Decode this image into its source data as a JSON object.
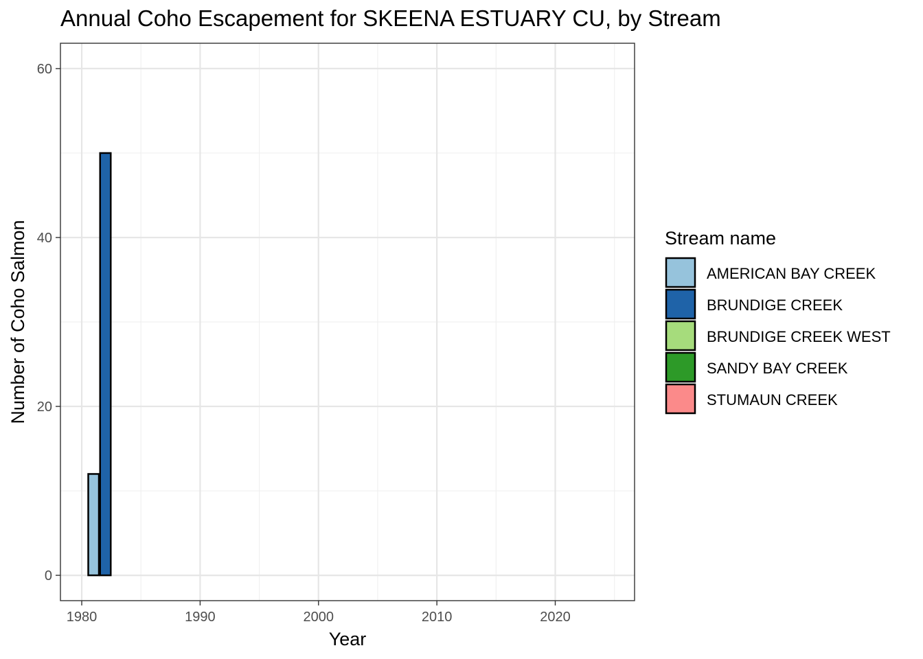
{
  "chart_data": {
    "type": "bar",
    "title": "Annual Coho Escapement for SKEENA ESTUARY CU, by Stream",
    "xlabel": "Year",
    "ylabel": "Number of Coho Salmon",
    "xlim": [
      1978.2,
      1980.1,
      2026.7
    ],
    "x_ticks": [
      1980,
      1990,
      2000,
      2010,
      2020
    ],
    "ylim": [
      -3,
      63
    ],
    "y_ticks": [
      0,
      20,
      40,
      60
    ],
    "grid": true,
    "legend": {
      "title": "Stream name",
      "position": "right"
    },
    "series": [
      {
        "name": "AMERICAN BAY CREEK",
        "color": "#96c3dc",
        "points": [
          {
            "x": 1981,
            "y": 12
          }
        ]
      },
      {
        "name": "BRUNDIGE CREEK",
        "color": "#1f63a8",
        "points": [
          {
            "x": 1982,
            "y": 50
          }
        ]
      },
      {
        "name": "BRUNDIGE CREEK WEST",
        "color": "#a6dc7c",
        "points": []
      },
      {
        "name": "SANDY BAY CREEK",
        "color": "#2d9a28",
        "points": []
      },
      {
        "name": "STUMAUN CREEK",
        "color": "#fb8a8a",
        "points": []
      }
    ]
  }
}
